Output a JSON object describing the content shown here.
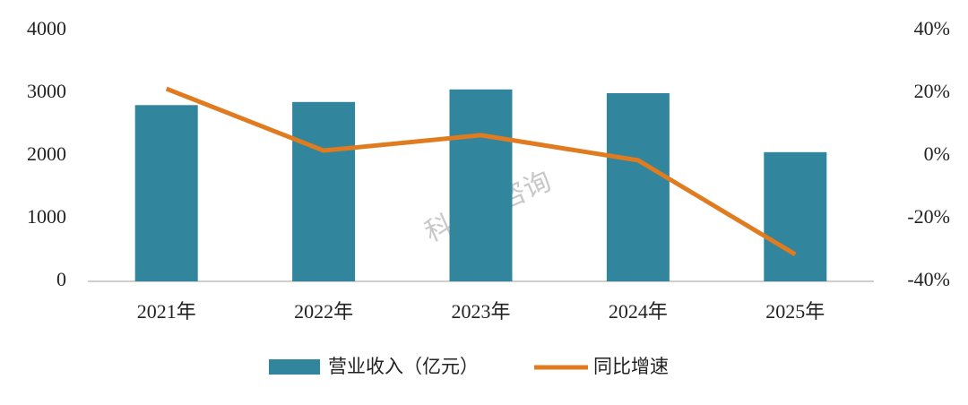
{
  "chart_data": {
    "type": "combo",
    "watermark": "科思顿咨询",
    "categories": [
      "2021年",
      "2022年",
      "2023年",
      "2024年",
      "2025年"
    ],
    "series": [
      {
        "name": "营业收入（亿元）",
        "type": "bar",
        "color": "#31859c",
        "values": [
          2810,
          2860,
          3060,
          3000,
          2060
        ]
      },
      {
        "name": "同比增速",
        "type": "line",
        "axis": "y2",
        "color": "#e07b1f",
        "values": [
          21.4,
          1.7,
          6.6,
          -1.4,
          -31.4
        ]
      }
    ],
    "ylim": [
      0,
      4000
    ],
    "yticks": [
      0,
      1000,
      2000,
      3000,
      4000
    ],
    "y2lim": [
      -40,
      40
    ],
    "y2ticks": [
      {
        "value": -40,
        "label": "-40%"
      },
      {
        "value": -20,
        "label": "-20%"
      },
      {
        "value": 0,
        "label": "0%"
      },
      {
        "value": 20,
        "label": "20%"
      },
      {
        "value": 40,
        "label": "40%"
      }
    ],
    "grid": false,
    "legend": "bottom"
  }
}
